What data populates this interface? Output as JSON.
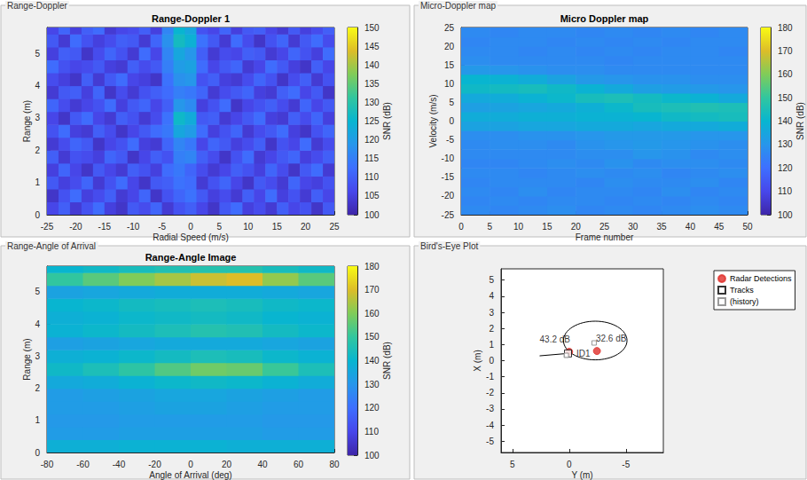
{
  "chart_data": [
    {
      "type": "heatmap",
      "panel_title": "Range-Doppler",
      "title": "Range-Doppler 1",
      "x_label": "Radial Speed (m/s)",
      "y_label": "Range (m)",
      "xlim": [
        -25,
        25
      ],
      "xticks": [
        -25,
        -20,
        -15,
        -10,
        -5,
        0,
        5,
        10,
        15,
        20,
        25
      ],
      "ylim": [
        0,
        5.8
      ],
      "yticks": [
        0,
        1,
        2,
        3,
        4,
        5
      ],
      "grid": false,
      "x": [
        -24,
        -22,
        -20,
        -18,
        -16,
        -14,
        -12,
        -10,
        -8,
        -6,
        -4,
        -2,
        0,
        2,
        4,
        6,
        8,
        10,
        12,
        14,
        16,
        18,
        20,
        22,
        24
      ],
      "y": [
        0.2,
        0.6,
        1.0,
        1.4,
        1.8,
        2.2,
        2.6,
        3.0,
        3.4,
        3.8,
        4.2,
        4.6,
        5.0,
        5.4,
        5.8
      ],
      "cells": [
        [
          106,
          110,
          104,
          108,
          112,
          105,
          103,
          109,
          107,
          111,
          104,
          108,
          110,
          106,
          103,
          109,
          112,
          105,
          107,
          104,
          110,
          106,
          108,
          103,
          109
        ],
        [
          103,
          108,
          112,
          105,
          107,
          110,
          104,
          106,
          111,
          103,
          108,
          111,
          113,
          109,
          105,
          107,
          104,
          110,
          106,
          112,
          105,
          108,
          104,
          110,
          106
        ],
        [
          109,
          105,
          107,
          111,
          104,
          108,
          112,
          106,
          103,
          109,
          110,
          113,
          112,
          104,
          108,
          111,
          106,
          103,
          109,
          107,
          104,
          111,
          106,
          105,
          108
        ],
        [
          105,
          111,
          106,
          103,
          109,
          106,
          104,
          110,
          108,
          105,
          112,
          114,
          111,
          107,
          104,
          106,
          110,
          108,
          105,
          111,
          107,
          103,
          109,
          112,
          104
        ],
        [
          110,
          104,
          108,
          107,
          105,
          111,
          109,
          103,
          106,
          110,
          108,
          115,
          116,
          110,
          107,
          103,
          108,
          112,
          104,
          106,
          109,
          111,
          105,
          107,
          110
        ],
        [
          104,
          107,
          111,
          109,
          103,
          106,
          108,
          112,
          105,
          104,
          111,
          116,
          114,
          106,
          111,
          109,
          105,
          107,
          110,
          103,
          108,
          106,
          112,
          104,
          107
        ],
        [
          108,
          112,
          105,
          104,
          110,
          107,
          103,
          106,
          109,
          112,
          114,
          122,
          120,
          112,
          105,
          108,
          111,
          104,
          107,
          109,
          112,
          105,
          103,
          108,
          111
        ],
        [
          106,
          103,
          109,
          112,
          106,
          104,
          110,
          108,
          104,
          107,
          113,
          126,
          123,
          109,
          110,
          104,
          106,
          109,
          112,
          105,
          104,
          110,
          107,
          111,
          105
        ],
        [
          111,
          107,
          104,
          106,
          108,
          112,
          105,
          109,
          111,
          106,
          110,
          119,
          117,
          105,
          108,
          112,
          103,
          106,
          108,
          110,
          107,
          104,
          111,
          106,
          109
        ],
        [
          104,
          109,
          110,
          105,
          111,
          103,
          107,
          104,
          108,
          110,
          112,
          115,
          114,
          111,
          104,
          107,
          109,
          111,
          105,
          104,
          110,
          112,
          106,
          109,
          103
        ],
        [
          107,
          105,
          103,
          110,
          104,
          109,
          112,
          106,
          105,
          103,
          113,
          118,
          119,
          108,
          110,
          105,
          104,
          107,
          111,
          108,
          103,
          107,
          110,
          104,
          108
        ],
        [
          112,
          108,
          106,
          107,
          109,
          105,
          104,
          110,
          107,
          109,
          115,
          120,
          121,
          112,
          106,
          109,
          111,
          104,
          106,
          112,
          109,
          105,
          103,
          110,
          106
        ],
        [
          105,
          110,
          109,
          103,
          107,
          111,
          108,
          104,
          112,
          106,
          116,
          122,
          119,
          110,
          104,
          107,
          106,
          110,
          109,
          104,
          106,
          111,
          108,
          105,
          112
        ],
        [
          109,
          104,
          112,
          108,
          105,
          107,
          110,
          109,
          104,
          111,
          118,
          127,
          124,
          113,
          109,
          104,
          112,
          107,
          103,
          108,
          111,
          104,
          109,
          112,
          107
        ],
        [
          106,
          111,
          105,
          110,
          112,
          104,
          106,
          107,
          110,
          105,
          116,
          125,
          122,
          108,
          106,
          111,
          105,
          109,
          110,
          106,
          104,
          109,
          105,
          107,
          110
        ]
      ],
      "colorbar": {
        "label": "SNR (dB)",
        "range": [
          100,
          150
        ],
        "ticks": [
          100,
          105,
          110,
          115,
          120,
          125,
          130,
          135,
          140,
          145,
          150
        ]
      }
    },
    {
      "type": "heatmap",
      "panel_title": "Micro-Doppler map",
      "title": "Micro Doppler map",
      "x_label": "Frame number",
      "y_label": "Velocity (m/s)",
      "xlim": [
        0,
        50
      ],
      "xticks": [
        0,
        5,
        10,
        15,
        20,
        25,
        30,
        35,
        40,
        45,
        50
      ],
      "ylim": [
        -25,
        25
      ],
      "yticks": [
        -25,
        -20,
        -15,
        -10,
        -5,
        0,
        5,
        10,
        15,
        20,
        25
      ],
      "grid": false,
      "x": [
        2.5,
        7.5,
        12.5,
        17.5,
        22.5,
        27.5,
        32.5,
        37.5,
        42.5,
        47.5
      ],
      "y": [
        -23.75,
        -21.25,
        -18.75,
        -16.25,
        -13.75,
        -11.25,
        -8.75,
        -6.25,
        -3.75,
        -1.25,
        1.25,
        3.75,
        6.25,
        8.75,
        11.25,
        13.75,
        16.25,
        18.75,
        21.25,
        23.75
      ],
      "cells": [
        [
          127,
          126,
          127,
          128,
          126,
          127,
          126,
          127,
          128,
          127
        ],
        [
          126,
          127,
          126,
          127,
          127,
          126,
          127,
          126,
          127,
          126
        ],
        [
          127,
          126,
          128,
          126,
          127,
          127,
          126,
          128,
          126,
          127
        ],
        [
          126,
          127,
          127,
          127,
          126,
          128,
          127,
          127,
          128,
          126
        ],
        [
          127,
          127,
          126,
          127,
          128,
          127,
          128,
          126,
          127,
          128
        ],
        [
          126,
          126,
          127,
          128,
          127,
          129,
          127,
          128,
          128,
          127
        ],
        [
          127,
          127,
          127,
          127,
          128,
          128,
          130,
          129,
          127,
          128
        ],
        [
          127,
          128,
          128,
          127,
          129,
          130,
          131,
          130,
          129,
          128
        ],
        [
          128,
          128,
          129,
          129,
          130,
          131,
          131,
          131,
          130,
          130
        ],
        [
          134,
          134,
          135,
          135,
          136,
          136,
          135,
          136,
          136,
          137
        ],
        [
          137,
          137,
          138,
          138,
          139,
          139,
          140,
          142,
          143,
          144
        ],
        [
          133,
          134,
          135,
          136,
          138,
          141,
          144,
          145,
          146,
          145
        ],
        [
          136,
          137,
          139,
          141,
          144,
          145,
          143,
          141,
          139,
          136
        ],
        [
          142,
          143,
          144,
          142,
          139,
          136,
          133,
          132,
          131,
          130
        ],
        [
          140,
          139,
          137,
          134,
          131,
          130,
          129,
          129,
          128,
          128
        ],
        [
          131,
          130,
          129,
          128,
          128,
          127,
          127,
          127,
          127,
          127
        ],
        [
          128,
          127,
          127,
          127,
          127,
          126,
          127,
          127,
          127,
          127
        ],
        [
          127,
          127,
          126,
          127,
          126,
          127,
          126,
          127,
          127,
          126
        ],
        [
          126,
          127,
          127,
          126,
          127,
          126,
          127,
          126,
          127,
          127
        ],
        [
          127,
          126,
          127,
          127,
          126,
          127,
          126,
          127,
          126,
          127
        ]
      ],
      "colorbar": {
        "label": "SNR (dB)",
        "range": [
          100,
          180
        ],
        "ticks": [
          100,
          110,
          120,
          130,
          140,
          150,
          160,
          170,
          180
        ]
      }
    },
    {
      "type": "heatmap",
      "panel_title": "Range-Angle of Arrival",
      "title": "Range-Angle Image",
      "x_label": "Angle of Arrival (deg)",
      "y_label": "Range (m)",
      "xlim": [
        -80,
        80
      ],
      "xticks": [
        -80,
        -60,
        -40,
        -20,
        0,
        20,
        40,
        60,
        80
      ],
      "ylim": [
        0,
        5.8
      ],
      "yticks": [
        0,
        1,
        2,
        3,
        4,
        5
      ],
      "grid": false,
      "x": [
        -70,
        -50,
        -30,
        -10,
        10,
        30,
        50,
        70
      ],
      "y": [
        0.2,
        0.6,
        1.0,
        1.4,
        1.8,
        2.2,
        2.6,
        3.0,
        3.4,
        3.8,
        4.2,
        4.6,
        5.0,
        5.4,
        5.8
      ],
      "cells": [
        [
          138,
          138,
          139,
          139,
          139,
          138,
          138,
          138
        ],
        [
          132,
          132,
          133,
          133,
          133,
          133,
          132,
          132
        ],
        [
          131,
          131,
          132,
          132,
          132,
          132,
          131,
          131
        ],
        [
          132,
          132,
          133,
          134,
          134,
          133,
          132,
          132
        ],
        [
          132,
          133,
          134,
          135,
          135,
          134,
          133,
          132
        ],
        [
          136,
          137,
          139,
          141,
          142,
          141,
          139,
          137
        ],
        [
          142,
          145,
          149,
          154,
          158,
          157,
          151,
          145
        ],
        [
          138,
          139,
          141,
          143,
          145,
          144,
          141,
          139
        ],
        [
          133,
          134,
          135,
          136,
          136,
          136,
          135,
          134
        ],
        [
          139,
          141,
          143,
          145,
          147,
          146,
          143,
          141
        ],
        [
          138,
          139,
          141,
          142,
          143,
          142,
          140,
          139
        ],
        [
          140,
          141,
          143,
          144,
          145,
          144,
          142,
          141
        ],
        [
          134,
          135,
          136,
          137,
          137,
          137,
          136,
          135
        ],
        [
          150,
          155,
          160,
          164,
          168,
          170,
          162,
          155
        ],
        [
          140,
          142,
          144,
          146,
          147,
          147,
          144,
          142
        ]
      ],
      "colorbar": {
        "label": "SNR (dB)",
        "range": [
          100,
          180
        ],
        "ticks": [
          100,
          110,
          120,
          130,
          140,
          150,
          160,
          170,
          180
        ]
      }
    },
    {
      "type": "scatter",
      "panel_title": "Bird's-Eye Plot",
      "x_label": "Y (m)",
      "y_label": "X (m)",
      "xlim": [
        6,
        -8.3
      ],
      "xticks": [
        5,
        0,
        -5
      ],
      "ylim": [
        -5.7,
        5.7
      ],
      "yticks": [
        -5,
        -4,
        -3,
        -2,
        -1,
        0,
        1,
        2,
        3,
        4,
        5
      ],
      "grid": false,
      "legend": "right",
      "series": [
        {
          "name": "Radar Detections",
          "type": "scatter",
          "marker": "circle",
          "color": "#e0302a",
          "x": [
            0,
            -2.45
          ],
          "y": [
            0.55,
            0.6
          ],
          "labels": [
            "43.2 dB",
            "32.6 dB"
          ]
        },
        {
          "name": "Tracks",
          "type": "scatter",
          "marker": "square",
          "color": "#000000",
          "x": [
            0.1
          ],
          "y": [
            0.45
          ],
          "labels": [
            "ID1"
          ],
          "vector": {
            "x": [
              0.1,
              2.6
            ],
            "y": [
              0.45,
              0.3
            ]
          }
        },
        {
          "name": "(history)",
          "type": "scatter",
          "marker": "square",
          "color": "#7f7f7f",
          "x": [
            -2.2,
            0.25
          ],
          "y": [
            1.1,
            0.33
          ]
        }
      ],
      "ellipse": {
        "center": [
          -2.3,
          1.25
        ],
        "radii": [
          2.8,
          1.2
        ]
      }
    }
  ]
}
